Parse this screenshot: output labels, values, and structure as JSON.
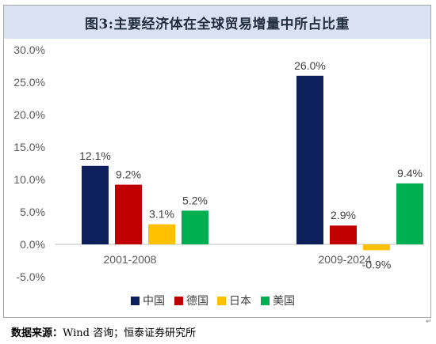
{
  "chart_data": {
    "type": "bar",
    "title": "图3:主要经济体在全球贸易增量中所占比重",
    "categories": [
      "2001-2008",
      "2009-2024"
    ],
    "series": [
      {
        "name": "中国",
        "color": "#0d1f5c",
        "values": [
          12.1,
          26.0
        ],
        "labels": [
          "12.1%",
          "26.0%"
        ]
      },
      {
        "name": "德国",
        "color": "#c00000",
        "values": [
          9.2,
          2.9
        ],
        "labels": [
          "9.2%",
          "2.9%"
        ]
      },
      {
        "name": "日本",
        "color": "#ffc000",
        "values": [
          3.1,
          -0.9
        ],
        "labels": [
          "3.1%",
          "-0.9%"
        ]
      },
      {
        "name": "美国",
        "color": "#00b050",
        "values": [
          5.2,
          9.4
        ],
        "labels": [
          "5.2%",
          "9.4%"
        ]
      }
    ],
    "yticks": [
      "30.0%",
      "25.0%",
      "20.0%",
      "15.0%",
      "10.0%",
      "5.0%",
      "0.0%",
      "-5.0%"
    ],
    "ytick_values": [
      30,
      25,
      20,
      15,
      10,
      5,
      0,
      -5
    ],
    "ylim": [
      -5,
      30
    ],
    "grid": false,
    "legend_position": "bottom"
  },
  "footer": {
    "label": "数据来源：",
    "text": "Wind 咨询；恒泰证券研究所"
  },
  "corner_mark": "↵"
}
